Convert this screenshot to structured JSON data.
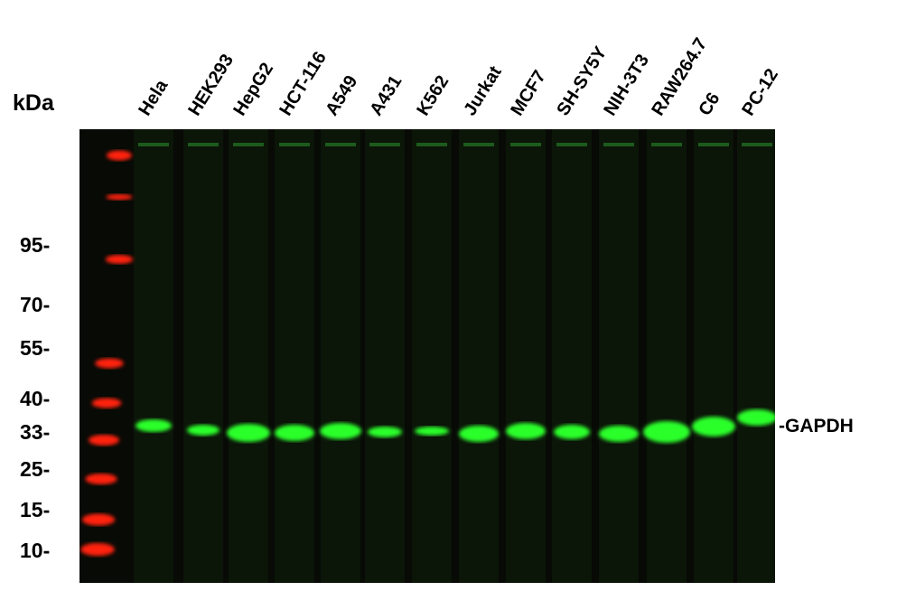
{
  "unit_label": "kDa",
  "lanes": [
    "Hela",
    "HEK293",
    "HepG2",
    "HCT-116",
    "A549",
    "A431",
    "K562",
    "Jurkat",
    "MCF7",
    "SH-SY5Y",
    "NIH-3T3",
    "RAW264.7",
    "C6",
    "PC-12"
  ],
  "markers": [
    "95-",
    "70-",
    "55-",
    "40-",
    "33-",
    "25-",
    "15-",
    "10-"
  ],
  "target_label": "-GAPDH",
  "colors": {
    "target_band": "#2cff2c",
    "ladder": "#ff2010",
    "background": "#080a06"
  }
}
